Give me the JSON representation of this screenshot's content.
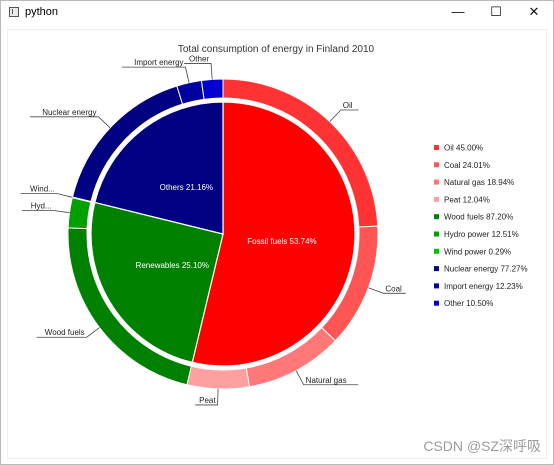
{
  "window": {
    "title": "python",
    "controls": {
      "minimize": "—",
      "maximize": "☐",
      "close": "✕"
    }
  },
  "watermark": "CSDN @SZ深呼吸",
  "chart_data": {
    "type": "pie",
    "title": "Total consumption of energy in Finland 2010",
    "legend_position": "right",
    "inner": [
      {
        "name": "Fossil fuels",
        "label": "Fossil fuels 53.74%",
        "value": 53.74,
        "color": "#ff0000"
      },
      {
        "name": "Renewables",
        "label": "Renewables 25.10%",
        "value": 25.1,
        "color": "#008000"
      },
      {
        "name": "Others",
        "label": "Others 21.16%",
        "value": 21.16,
        "color": "#000080"
      }
    ],
    "outer": [
      {
        "parent": 0,
        "label": "Oil",
        "legend": "Oil 45.00%",
        "share": 45.0,
        "color": "#ff3333"
      },
      {
        "parent": 0,
        "label": "Coal",
        "legend": "Coal 24.01%",
        "share": 24.01,
        "color": "#ff5555"
      },
      {
        "parent": 0,
        "label": "Natural gas",
        "legend": "Natural gas 18.94%",
        "share": 18.94,
        "color": "#ff7777"
      },
      {
        "parent": 0,
        "label": "Peat",
        "legend": "Peat 12.04%",
        "share": 12.04,
        "color": "#ffa0a0"
      },
      {
        "parent": 1,
        "label": "Wood fuels",
        "legend": "Wood fuels 87.20%",
        "share": 87.2,
        "color": "#008000"
      },
      {
        "parent": 1,
        "label": "Hyd...",
        "legend": "Hydro power 12.51%",
        "share": 12.51,
        "color": "#00a000"
      },
      {
        "parent": 1,
        "label": "Wind...",
        "legend": "Wind power 0.29%",
        "share": 0.29,
        "color": "#00c000"
      },
      {
        "parent": 2,
        "label": "Nuclear energy",
        "legend": "Nuclear energy 77.27%",
        "share": 77.27,
        "color": "#000080"
      },
      {
        "parent": 2,
        "label": "Import energy",
        "legend": "Import energy 12.23%",
        "share": 12.23,
        "color": "#0000a0"
      },
      {
        "parent": 2,
        "label": "Other",
        "legend": "Other 10.50%",
        "share": 10.5,
        "color": "#0000d0"
      }
    ]
  }
}
